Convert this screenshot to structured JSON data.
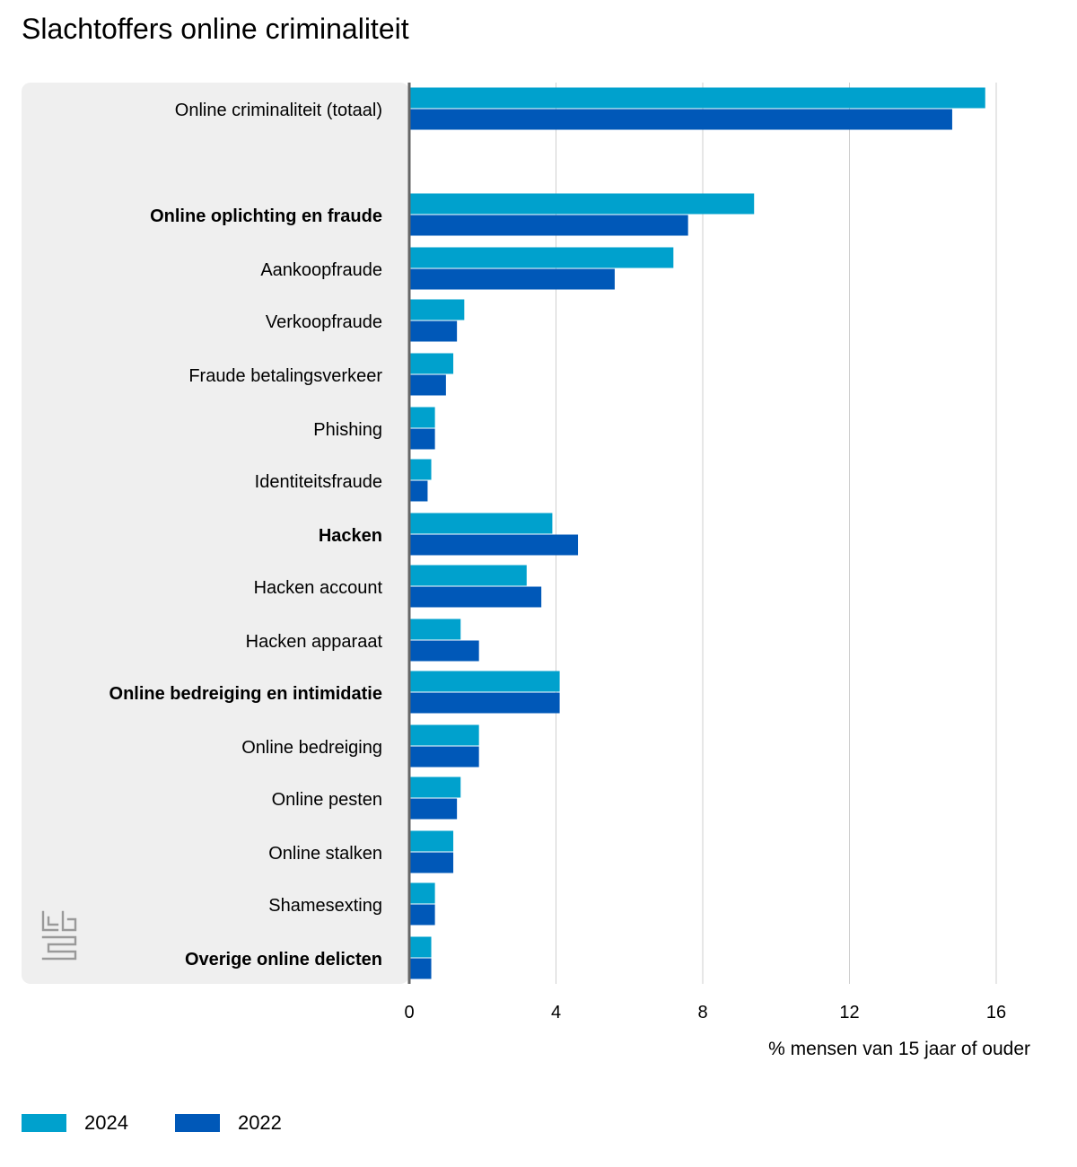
{
  "chart_data": {
    "type": "bar",
    "orientation": "horizontal",
    "title": "Slachtoffers online criminaliteit",
    "xlabel": "% mensen van 15 jaar of ouder",
    "ylabel": "",
    "xlim": [
      0,
      16
    ],
    "xticks": [
      0,
      4,
      8,
      12,
      16
    ],
    "grid": true,
    "legend_position": "bottom-left",
    "categories": [
      "Online criminaliteit (totaal)",
      "Online oplichting en fraude",
      "Aankoopfraude",
      "Verkoopfraude",
      "Fraude betalingsverkeer",
      "Phishing",
      "Identiteitsfraude",
      "Hacken",
      "Hacken account",
      "Hacken apparaat",
      "Online bedreiging en intimidatie",
      "Online bedreiging",
      "Online pesten",
      "Online stalken",
      "Shamesexting",
      "Overige online delicten"
    ],
    "bold_categories": [
      "Online oplichting en fraude",
      "Hacken",
      "Online bedreiging en intimidatie",
      "Overige online delicten"
    ],
    "series": [
      {
        "name": "2024",
        "color": "#00a1cd",
        "values": [
          15.7,
          9.4,
          7.2,
          1.5,
          1.2,
          0.7,
          0.6,
          3.9,
          3.2,
          1.4,
          4.1,
          1.9,
          1.4,
          1.2,
          0.7,
          0.6
        ]
      },
      {
        "name": "2022",
        "color": "#0058b8",
        "values": [
          14.8,
          7.6,
          5.6,
          1.3,
          1.0,
          0.7,
          0.5,
          4.6,
          3.6,
          1.9,
          4.1,
          1.9,
          1.3,
          1.2,
          0.7,
          0.6
        ]
      }
    ]
  },
  "colors": {
    "panel_background": "#efefef",
    "gridline": "#cfcfcf",
    "axis_line": "#666666",
    "logo": "#9a9a9a"
  },
  "logo": {
    "name": "cbs-logo"
  }
}
